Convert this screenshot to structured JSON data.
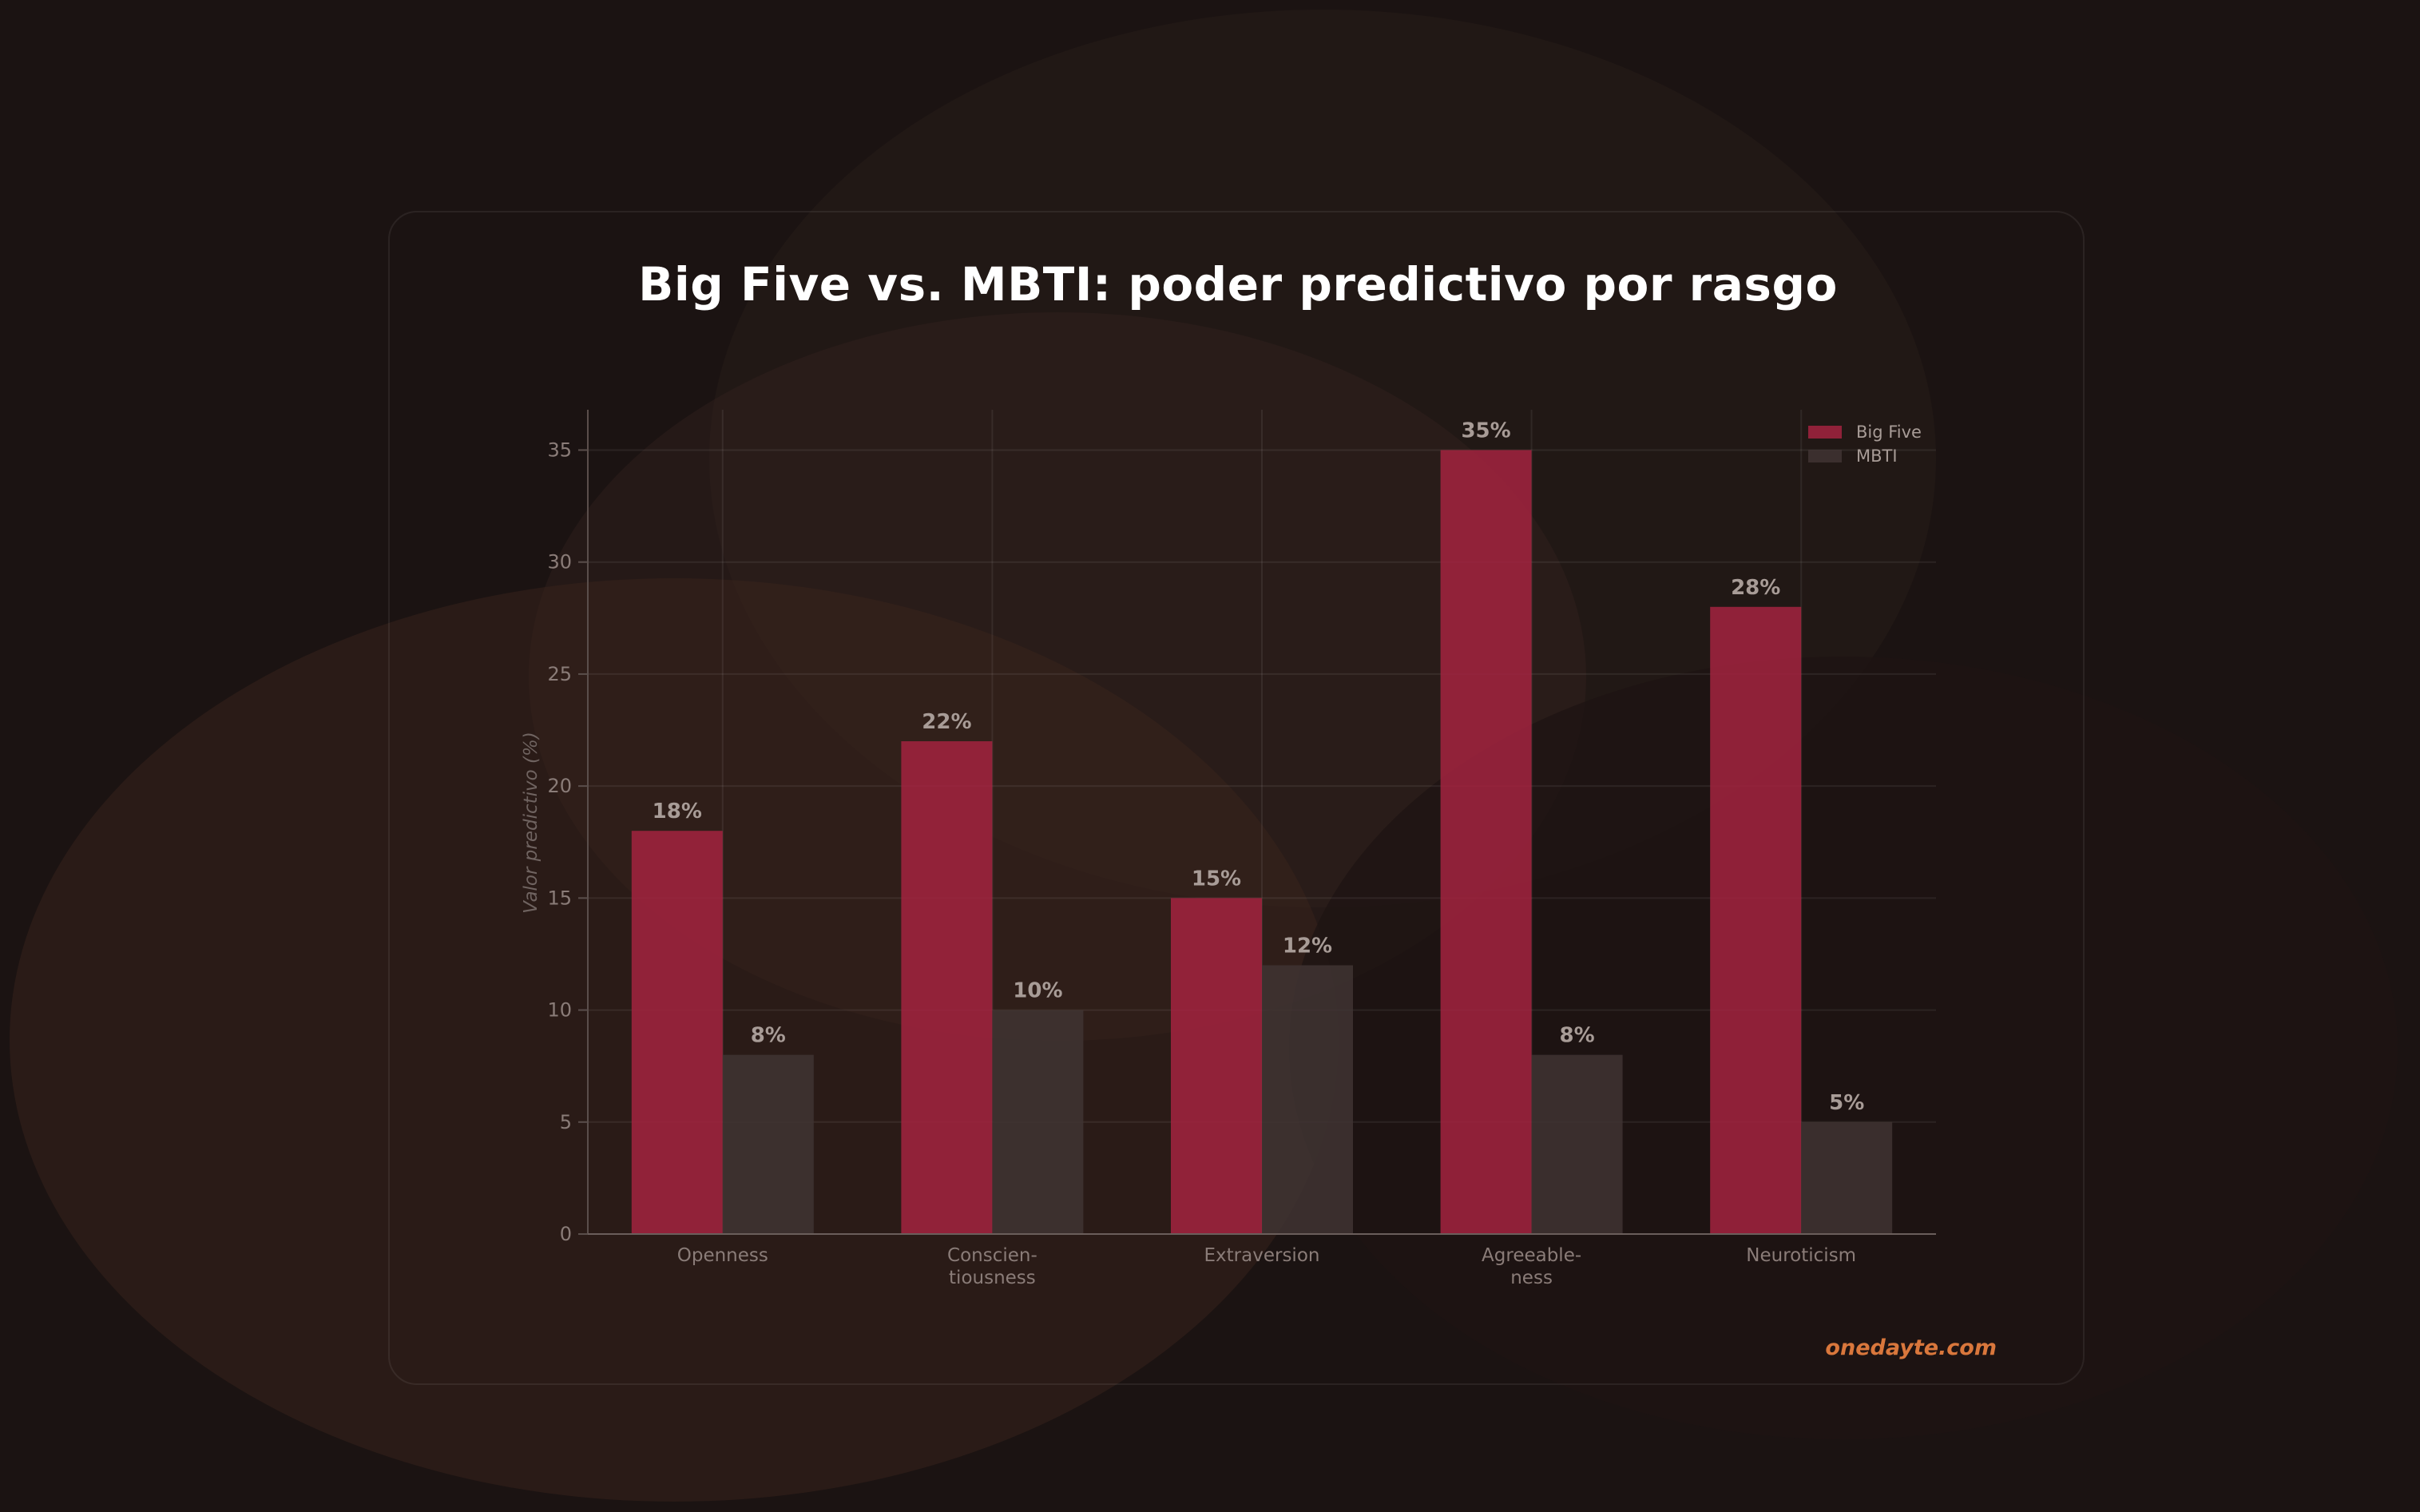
{
  "chart_data": {
    "type": "bar",
    "title": "Big Five vs. MBTI: poder predictivo por rasgo",
    "ylabel": "Valor predictivo (%)",
    "xlabel": "",
    "categories": [
      "Openness",
      "Conscien-\ntiousness",
      "Extraversion",
      "Agreeable-\nness",
      "Neuroticism"
    ],
    "series": [
      {
        "name": "Big Five",
        "values": [
          18,
          22,
          15,
          35,
          28
        ],
        "color": "#a3233f"
      },
      {
        "name": "MBTI",
        "values": [
          8,
          10,
          12,
          8,
          5
        ],
        "color": "#3f3432"
      }
    ],
    "ylim": [
      0,
      36.8
    ],
    "yticks": [
      0,
      5,
      10,
      15,
      20,
      25,
      30,
      35
    ],
    "value_suffix": "%",
    "grid": true,
    "legend_position": "top-right"
  },
  "watermark": "onedayte.com"
}
